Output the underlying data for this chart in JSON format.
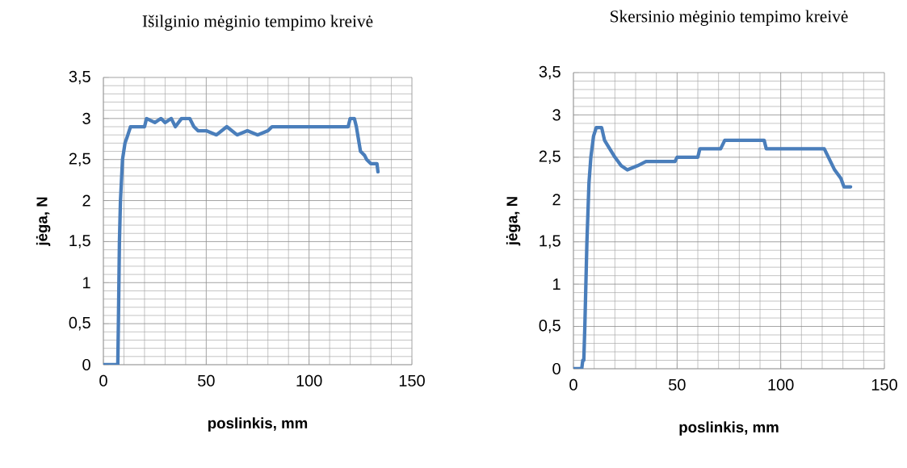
{
  "chart_data": [
    {
      "type": "line",
      "title": "Išilginio mėginio tempimo kreivė",
      "xlabel": "poslinkis, mm",
      "ylabel": "jėga, N",
      "x": [
        0,
        7,
        7.3,
        7.8,
        8.3,
        9.3,
        10.5,
        11.9,
        13.2,
        20,
        21,
        25,
        28,
        30,
        33,
        35,
        38,
        42,
        44,
        46,
        50,
        55,
        60,
        65,
        70,
        75,
        80,
        82,
        90,
        100,
        110,
        119,
        120,
        122,
        123,
        124,
        125,
        127,
        128,
        130,
        131,
        133,
        133.5
      ],
      "series": [
        {
          "color": "#4a7ebb",
          "values": [
            0,
            0,
            0.5,
            1.5,
            2.0,
            2.5,
            2.7,
            2.8,
            2.9,
            2.9,
            3.0,
            2.95,
            3.0,
            2.95,
            3.0,
            2.9,
            3.0,
            3.0,
            2.9,
            2.85,
            2.85,
            2.8,
            2.9,
            2.8,
            2.85,
            2.8,
            2.85,
            2.9,
            2.9,
            2.9,
            2.9,
            2.9,
            3.0,
            3.0,
            2.9,
            2.75,
            2.6,
            2.55,
            2.5,
            2.45,
            2.45,
            2.45,
            2.35
          ]
        }
      ],
      "xlim": [
        0,
        150
      ],
      "ylim": [
        0,
        3.5
      ],
      "xticks": [
        0,
        50,
        100,
        150
      ],
      "yticks": [
        0,
        {
          "value": 0.5,
          "label": "0,5"
        },
        1,
        {
          "value": 1.5,
          "label": "1,5"
        },
        2,
        {
          "value": 2.5,
          "label": "2,5"
        },
        3,
        {
          "value": 3.5,
          "label": "3,5"
        }
      ],
      "grid": true
    },
    {
      "type": "line",
      "title": "Skersinio mėginio tempimo kreivė",
      "xlabel": "poslinkis, mm",
      "ylabel": "jėga, N",
      "x": [
        0,
        4,
        4.5,
        5,
        5.5,
        6.5,
        7.5,
        8.4,
        9.7,
        11,
        13.6,
        15,
        17.5,
        20,
        23,
        26,
        31,
        35,
        40,
        45,
        49,
        50,
        55,
        60,
        61,
        65,
        71,
        73,
        80,
        85,
        92,
        93,
        100,
        110,
        121,
        123,
        126,
        129,
        130.5,
        133.7
      ],
      "series": [
        {
          "color": "#4a7ebb",
          "values": [
            0,
            0,
            0.1,
            0.1,
            0.5,
            1.5,
            2.2,
            2.5,
            2.75,
            2.85,
            2.85,
            2.7,
            2.6,
            2.5,
            2.4,
            2.35,
            2.4,
            2.45,
            2.45,
            2.45,
            2.45,
            2.5,
            2.5,
            2.5,
            2.6,
            2.6,
            2.6,
            2.7,
            2.7,
            2.7,
            2.7,
            2.6,
            2.6,
            2.6,
            2.6,
            2.5,
            2.35,
            2.25,
            2.15,
            2.15
          ]
        }
      ],
      "xlim": [
        0,
        150
      ],
      "ylim": [
        0,
        3.5
      ],
      "xticks": [
        0,
        50,
        100,
        150
      ],
      "yticks": [
        0,
        {
          "value": 0.5,
          "label": "0,5"
        },
        1,
        {
          "value": 1.5,
          "label": "1,5"
        },
        2,
        {
          "value": 2.5,
          "label": "2,5"
        },
        3,
        {
          "value": 3.5,
          "label": "3,5"
        }
      ],
      "grid": true
    }
  ]
}
